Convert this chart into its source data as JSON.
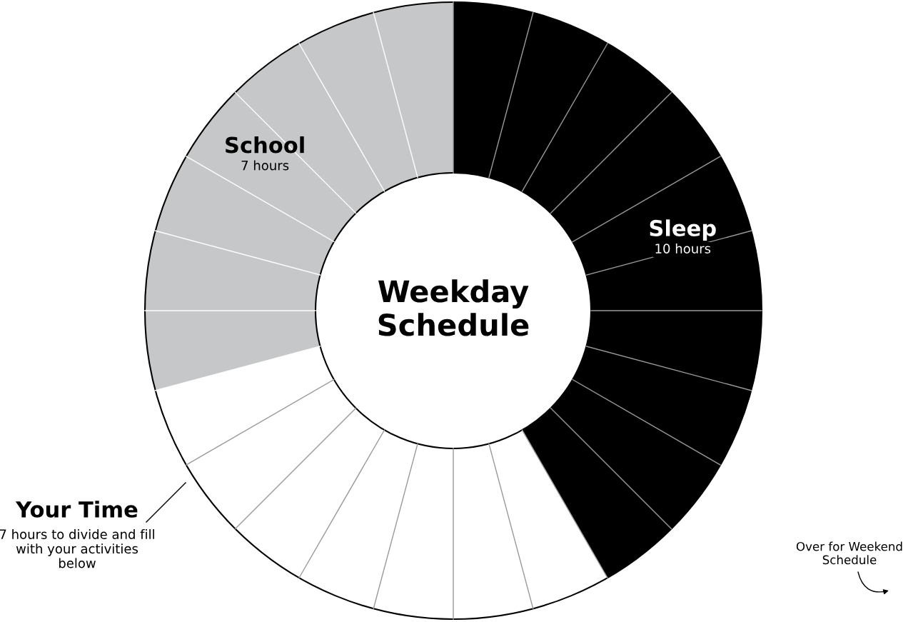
{
  "chart_data": {
    "type": "donut",
    "title": "Weekday Schedule",
    "categories": [
      "Sleep",
      "Your Time",
      "School"
    ],
    "values": [
      10,
      7,
      7
    ],
    "colors": [
      "#000000",
      "#ffffff",
      "#c6c7c8"
    ],
    "value_labels": [
      "10 hours",
      "7 hours to divide and fill with your activities below",
      "7 hours"
    ],
    "annotations": [
      "Over for Weekend Schedule"
    ],
    "legend": false
  }
}
